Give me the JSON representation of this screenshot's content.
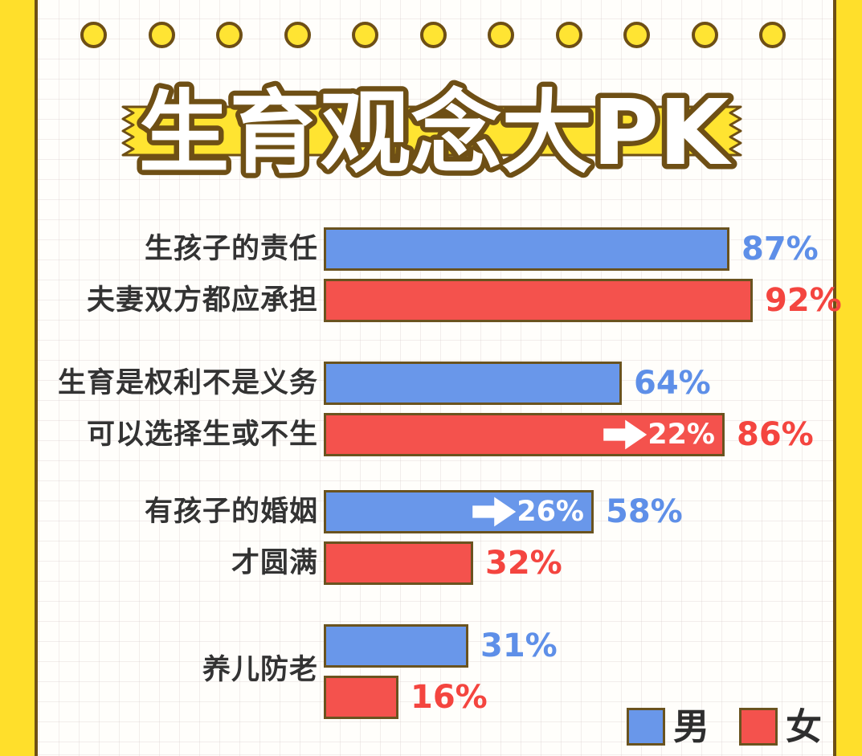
{
  "title": {
    "text": "生育观念大PK"
  },
  "decor": {
    "dot_count": 11
  },
  "colors": {
    "frame_yellow": "#FFDF2B",
    "ribbon_yellow": "#FFE431",
    "outline_brown": "#6E4F15",
    "male_blue": "#6997EA",
    "female_red": "#F4524D",
    "male_text": "#5E8FE8",
    "female_text": "#F4453F"
  },
  "legend": {
    "male_label": "男",
    "female_label": "女"
  },
  "chart_data": {
    "type": "bar",
    "orientation": "horizontal",
    "unit": "%",
    "title": "生育观念大PK",
    "series_names": [
      "男",
      "女"
    ],
    "xlim": [
      0,
      100
    ],
    "grid": true,
    "legend_position": "bottom-right",
    "groups": [
      {
        "label_lines": [
          "生孩子的责任",
          "夫妻双方都应承担"
        ],
        "male": {
          "value": 87,
          "label": "87%"
        },
        "female": {
          "value": 92,
          "label": "92%"
        }
      },
      {
        "label_lines": [
          "生育是权利不是义务",
          "可以选择生或不生"
        ],
        "male": {
          "value": 64,
          "label": "64%"
        },
        "female": {
          "value": 86,
          "label": "86%",
          "annotation": "22%"
        }
      },
      {
        "label_lines": [
          "有孩子的婚姻",
          "才圆满"
        ],
        "male": {
          "value": 58,
          "label": "58%",
          "annotation": "26%"
        },
        "female": {
          "value": 32,
          "label": "32%"
        }
      },
      {
        "label_lines": [
          "养儿防老"
        ],
        "male": {
          "value": 31,
          "label": "31%"
        },
        "female": {
          "value": 16,
          "label": "16%"
        }
      }
    ]
  }
}
